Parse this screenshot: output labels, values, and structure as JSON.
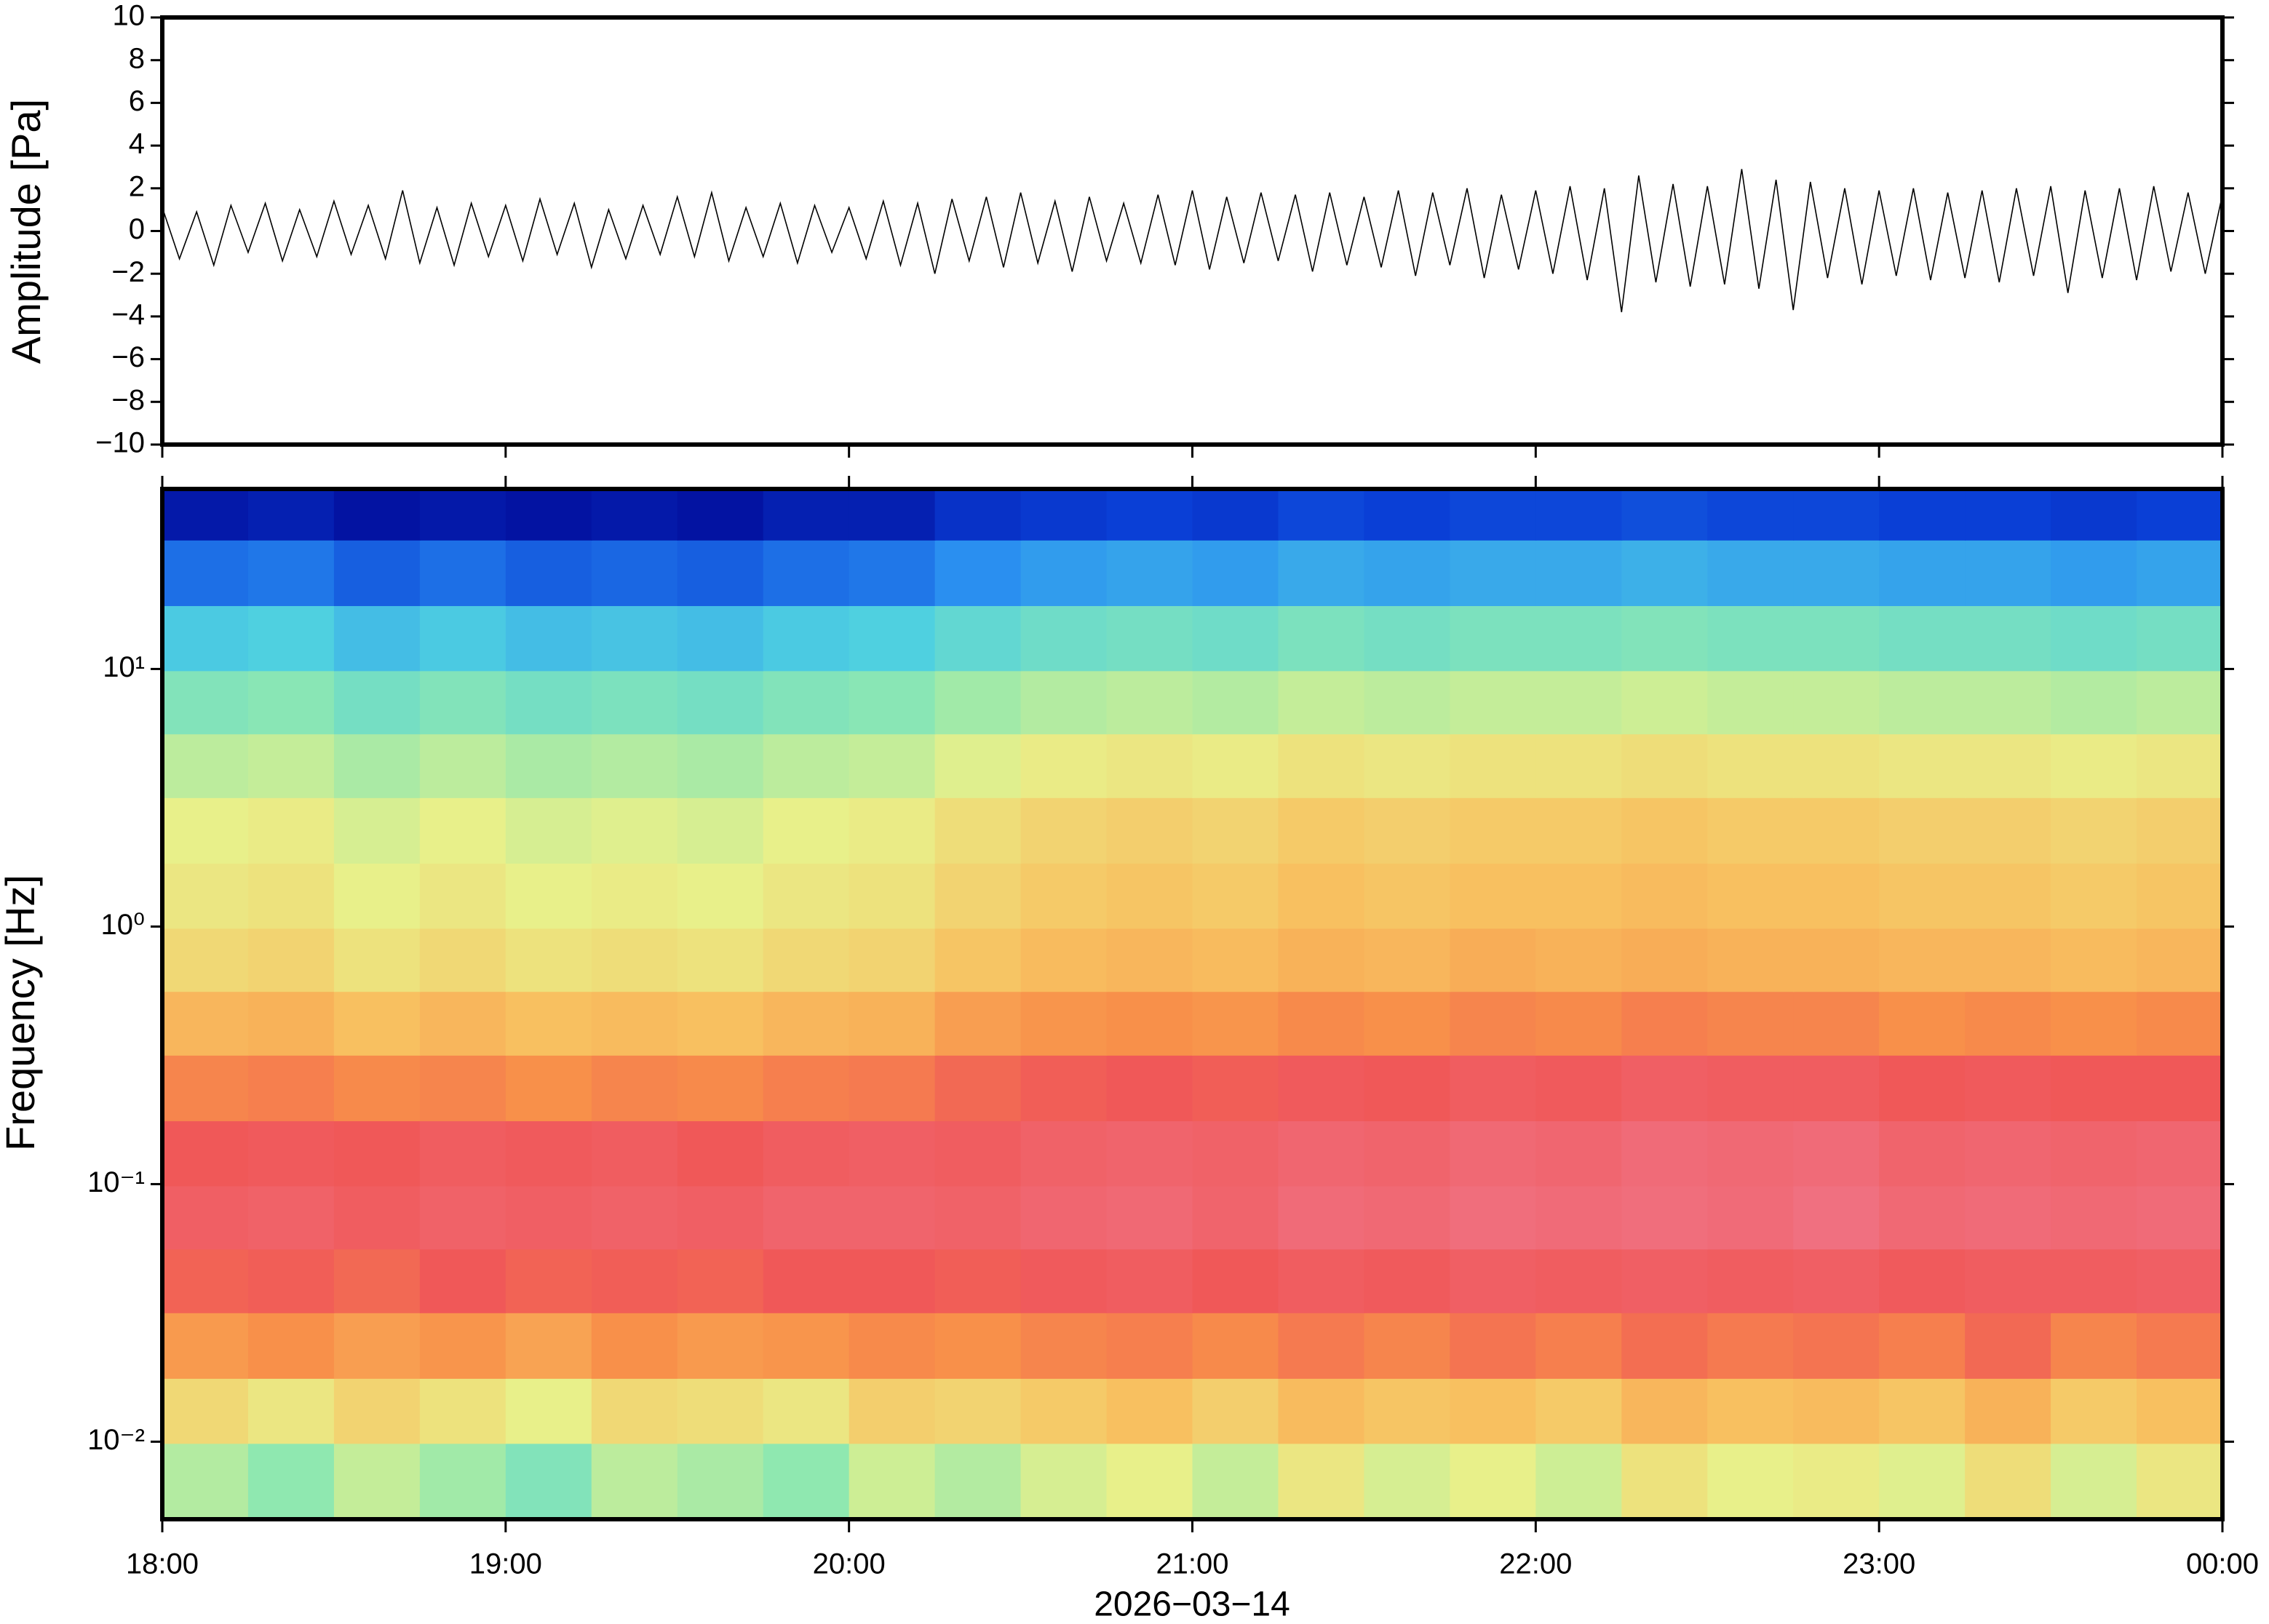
{
  "chart_data": [
    {
      "type": "line",
      "ylabel": "Amplitude [Pa]",
      "color": "#000000",
      "xlim": [
        0,
        360
      ],
      "ylim": [
        -10,
        10
      ],
      "yticks": [
        {
          "value": -10,
          "label": "−10"
        },
        {
          "value": -8,
          "label": "−8"
        },
        {
          "value": -6,
          "label": "−6"
        },
        {
          "value": -4,
          "label": "−4"
        },
        {
          "value": -2,
          "label": "−2"
        },
        0,
        2,
        4,
        6,
        8,
        10
      ],
      "x": [
        0,
        3,
        6,
        9,
        12,
        15,
        18,
        21,
        24,
        27,
        30,
        33,
        36,
        39,
        42,
        45,
        48,
        51,
        54,
        57,
        60,
        63,
        66,
        69,
        72,
        75,
        78,
        81,
        84,
        87,
        90,
        93,
        96,
        99,
        102,
        105,
        108,
        111,
        114,
        117,
        120,
        123,
        126,
        129,
        132,
        135,
        138,
        141,
        144,
        147,
        150,
        153,
        156,
        159,
        162,
        165,
        168,
        171,
        174,
        177,
        180,
        183,
        186,
        189,
        192,
        195,
        198,
        201,
        204,
        207,
        210,
        213,
        216,
        219,
        222,
        225,
        228,
        231,
        234,
        237,
        240,
        243,
        246,
        249,
        252,
        255,
        258,
        261,
        264,
        267,
        270,
        273,
        276,
        279,
        282,
        285,
        288,
        291,
        294,
        297,
        300,
        303,
        306,
        309,
        312,
        315,
        318,
        321,
        324,
        327,
        330,
        333,
        336,
        339,
        342,
        345,
        348,
        351,
        354,
        357,
        360
      ],
      "values": [
        1.1,
        -1.3,
        0.9,
        -1.6,
        1.2,
        -1.0,
        1.3,
        -1.4,
        1.0,
        -1.2,
        1.4,
        -1.1,
        1.2,
        -1.3,
        1.9,
        -1.5,
        1.1,
        -1.6,
        1.3,
        -1.2,
        1.2,
        -1.4,
        1.5,
        -1.1,
        1.3,
        -1.7,
        1.0,
        -1.3,
        1.2,
        -1.1,
        1.6,
        -1.2,
        1.8,
        -1.4,
        1.1,
        -1.2,
        1.3,
        -1.5,
        1.2,
        -1.0,
        1.1,
        -1.3,
        1.4,
        -1.6,
        1.3,
        -2.0,
        1.5,
        -1.4,
        1.6,
        -1.7,
        1.8,
        -1.5,
        1.4,
        -1.9,
        1.6,
        -1.4,
        1.3,
        -1.5,
        1.7,
        -1.6,
        1.9,
        -1.8,
        1.6,
        -1.5,
        1.8,
        -1.4,
        1.7,
        -1.9,
        1.8,
        -1.6,
        1.6,
        -1.7,
        1.9,
        -2.1,
        1.8,
        -1.6,
        2.0,
        -2.2,
        1.7,
        -1.8,
        1.9,
        -2.0,
        2.1,
        -2.3,
        2.0,
        -3.8,
        2.6,
        -2.4,
        2.2,
        -2.6,
        2.1,
        -2.5,
        2.9,
        -2.7,
        2.4,
        -3.7,
        2.3,
        -2.2,
        2.0,
        -2.5,
        1.9,
        -2.1,
        2.0,
        -2.3,
        1.8,
        -2.2,
        1.9,
        -2.4,
        2.0,
        -2.1,
        2.1,
        -2.9,
        1.9,
        -2.2,
        2.0,
        -2.3,
        2.1,
        -1.9,
        1.8,
        -2.0,
        1.7
      ]
    },
    {
      "type": "heatmap",
      "ylabel": "Frequency [Hz]",
      "xlabel": "2026−03−14",
      "xlim": [
        0,
        360
      ],
      "ylim": [
        0.005,
        50
      ],
      "log_y": true,
      "xticks": [
        {
          "value": 0,
          "label": "18:00"
        },
        {
          "value": 60,
          "label": "19:00"
        },
        {
          "value": 120,
          "label": "20:00"
        },
        {
          "value": 180,
          "label": "21:00"
        },
        {
          "value": 240,
          "label": "22:00"
        },
        {
          "value": 300,
          "label": "23:00"
        },
        {
          "value": 360,
          "label": "00:00"
        }
      ],
      "yticks": [
        {
          "value": 0.01,
          "label": "10⁻²"
        },
        {
          "value": 0.1,
          "label": "10⁻¹"
        },
        {
          "value": 1,
          "label": "10⁰"
        },
        {
          "value": 10,
          "label": "10¹"
        }
      ],
      "zlim": [
        0,
        100
      ],
      "colormap": [
        "#00008b",
        "#0a3fd6",
        "#2a8ff0",
        "#4fd0e0",
        "#8fe8b0",
        "#e8f08a",
        "#f8c060",
        "#f8904a",
        "#f05858",
        "#f07080",
        "#f8a0b0"
      ],
      "x": [
        7.5,
        22.5,
        37.5,
        52.5,
        67.5,
        82.5,
        97.5,
        112.5,
        127.5,
        142.5,
        157.5,
        172.5,
        187.5,
        202.5,
        217.5,
        232.5,
        247.5,
        262.5,
        277.5,
        292.5,
        307.5,
        322.5,
        337.5,
        352.5
      ],
      "y": [
        0.0075,
        0.013,
        0.024,
        0.042,
        0.075,
        0.13,
        0.24,
        0.42,
        0.75,
        1.3,
        2.4,
        4.2,
        7.5,
        13,
        24,
        42
      ],
      "values": [
        [
          44,
          40,
          46,
          42,
          38,
          45,
          43,
          40,
          47,
          44,
          48,
          50,
          46,
          52,
          48,
          50,
          47,
          53,
          50,
          51,
          49,
          54,
          48,
          52
        ],
        [
          55,
          52,
          56,
          53,
          50,
          55,
          54,
          52,
          57,
          56,
          58,
          60,
          57,
          61,
          59,
          60,
          58,
          62,
          60,
          61,
          59,
          63,
          58,
          60
        ],
        [
          68,
          70,
          67,
          69,
          66,
          70,
          68,
          69,
          71,
          70,
          72,
          73,
          71,
          74,
          72,
          75,
          73,
          76,
          74,
          75,
          73,
          77,
          72,
          74
        ],
        [
          78,
          79,
          77,
          80,
          78,
          79,
          78,
          80,
          80,
          79,
          81,
          82,
          80,
          82,
          81,
          83,
          82,
          83,
          82,
          83,
          81,
          82,
          82,
          83
        ],
        [
          83,
          84,
          82,
          84,
          83,
          84,
          83,
          85,
          85,
          84,
          86,
          87,
          85,
          88,
          87,
          89,
          88,
          89,
          88,
          90,
          87,
          88,
          87,
          88
        ],
        [
          80,
          81,
          80,
          82,
          81,
          82,
          80,
          82,
          83,
          82,
          84,
          85,
          84,
          86,
          85,
          87,
          86,
          88,
          87,
          88,
          85,
          86,
          85,
          86
        ],
        [
          72,
          73,
          71,
          72,
          70,
          72,
          71,
          73,
          74,
          77,
          79,
          80,
          79,
          81,
          80,
          82,
          81,
          83,
          82,
          82,
          80,
          81,
          80,
          80
        ],
        [
          62,
          63,
          60,
          62,
          60,
          61,
          60,
          62,
          63,
          67,
          69,
          70,
          69,
          71,
          70,
          72,
          71,
          73,
          72,
          72,
          70,
          71,
          70,
          71
        ],
        [
          55,
          56,
          53,
          55,
          53,
          54,
          53,
          55,
          56,
          59,
          61,
          62,
          61,
          63,
          62,
          64,
          63,
          64,
          63,
          63,
          62,
          62,
          61,
          62
        ],
        [
          52,
          53,
          50,
          52,
          50,
          51,
          50,
          52,
          53,
          56,
          58,
          59,
          58,
          60,
          59,
          60,
          60,
          61,
          60,
          60,
          59,
          59,
          58,
          59
        ],
        [
          50,
          51,
          48,
          50,
          48,
          49,
          48,
          50,
          51,
          54,
          56,
          57,
          56,
          58,
          57,
          58,
          58,
          59,
          58,
          58,
          57,
          57,
          56,
          57
        ],
        [
          45,
          46,
          43,
          45,
          43,
          44,
          43,
          45,
          46,
          49,
          51,
          52,
          51,
          53,
          52,
          53,
          53,
          54,
          53,
          53,
          52,
          52,
          51,
          52
        ],
        [
          38,
          39,
          36,
          38,
          36,
          37,
          36,
          38,
          39,
          42,
          44,
          45,
          44,
          46,
          45,
          46,
          46,
          47,
          46,
          46,
          45,
          45,
          44,
          45
        ],
        [
          29,
          30,
          27,
          29,
          27,
          28,
          27,
          29,
          30,
          33,
          35,
          36,
          35,
          37,
          36,
          37,
          37,
          38,
          37,
          37,
          36,
          36,
          35,
          36
        ],
        [
          16,
          17,
          14,
          16,
          14,
          15,
          14,
          16,
          17,
          20,
          22,
          23,
          22,
          24,
          23,
          24,
          24,
          25,
          24,
          24,
          23,
          23,
          22,
          23
        ],
        [
          4,
          5,
          3,
          4,
          3,
          4,
          3,
          5,
          5,
          8,
          9,
          10,
          9,
          11,
          10,
          11,
          11,
          12,
          11,
          11,
          10,
          10,
          9,
          10
        ]
      ]
    }
  ]
}
